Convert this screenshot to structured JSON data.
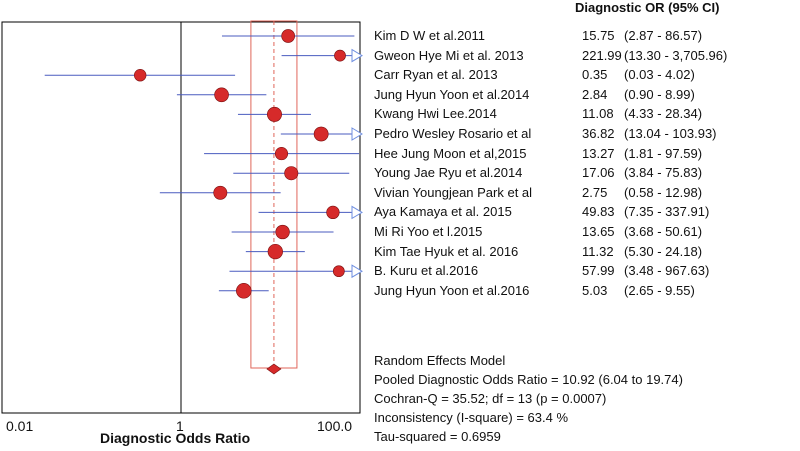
{
  "chart_data": {
    "type": "forest",
    "x_scale": "log",
    "xlim": [
      0.01,
      100
    ],
    "x_ticks": [
      "0.01",
      "1",
      "100.0"
    ],
    "xlabel": "Diagnostic Odds Ratio",
    "right_header": "Diagnostic OR (95% CI)",
    "studies": [
      {
        "name": "Kim D W et al.2011",
        "or": 15.75,
        "ci_low": 2.87,
        "ci_high": 86.57,
        "or_text": "15.75",
        "ci_text": "(2.87 - 86.57)"
      },
      {
        "name": "Gweon Hye Mi et al. 2013",
        "or": 221.99,
        "ci_low": 13.3,
        "ci_high": 3705.96,
        "or_text": "221.99",
        "ci_text": "(13.30 - 3,705.96)"
      },
      {
        "name": "Carr Ryan et al. 2013",
        "or": 0.35,
        "ci_low": 0.03,
        "ci_high": 4.02,
        "or_text": "0.35",
        "ci_text": "(0.03 - 4.02)"
      },
      {
        "name": "Jung Hyun Yoon et al.2014",
        "or": 2.84,
        "ci_low": 0.9,
        "ci_high": 8.99,
        "or_text": "2.84",
        "ci_text": "(0.90 - 8.99)"
      },
      {
        "name": "Kwang Hwi Lee.2014",
        "or": 11.08,
        "ci_low": 4.33,
        "ci_high": 28.34,
        "or_text": "11.08",
        "ci_text": "(4.33 - 28.34)"
      },
      {
        "name": "Pedro Wesley Rosario et al",
        "or": 36.82,
        "ci_low": 13.04,
        "ci_high": 103.93,
        "or_text": "36.82",
        "ci_text": "(13.04 - 103.93)"
      },
      {
        "name": "Hee Jung Moon et al,2015",
        "or": 13.27,
        "ci_low": 1.81,
        "ci_high": 97.59,
        "or_text": "13.27",
        "ci_text": "(1.81 - 97.59)"
      },
      {
        "name": "Young Jae Ryu et al.2014",
        "or": 17.06,
        "ci_low": 3.84,
        "ci_high": 75.83,
        "or_text": "17.06",
        "ci_text": "(3.84 - 75.83)"
      },
      {
        "name": "Vivian Youngjean Park et al",
        "or": 2.75,
        "ci_low": 0.58,
        "ci_high": 12.98,
        "or_text": "2.75",
        "ci_text": "(0.58 - 12.98)"
      },
      {
        "name": "Aya Kamaya et al. 2015",
        "or": 49.83,
        "ci_low": 7.35,
        "ci_high": 337.91,
        "or_text": "49.83",
        "ci_text": "(7.35 - 337.91)"
      },
      {
        "name": "Mi Ri Yoo et l.2015",
        "or": 13.65,
        "ci_low": 3.68,
        "ci_high": 50.61,
        "or_text": "13.65",
        "ci_text": "(3.68 - 50.61)"
      },
      {
        "name": "Kim Tae Hyuk et al. 2016",
        "or": 11.32,
        "ci_low": 5.3,
        "ci_high": 24.18,
        "or_text": "11.32",
        "ci_text": "(5.30 - 24.18)"
      },
      {
        "name": "B. Kuru et al.2016",
        "or": 57.99,
        "ci_low": 3.48,
        "ci_high": 967.63,
        "or_text": "57.99",
        "ci_text": "(3.48 - 967.63)"
      },
      {
        "name": "Jung Hyun Yoon et al.2016",
        "or": 5.03,
        "ci_low": 2.65,
        "ci_high": 9.55,
        "or_text": "5.03",
        "ci_text": "(2.65 - 9.55)"
      }
    ],
    "pooled": {
      "or": 10.92,
      "ci_low": 6.04,
      "ci_high": 19.74
    },
    "summary_lines": [
      "Random Effects Model",
      "Pooled Diagnostic Odds Ratio = 10.92 (6.04 to 19.74)",
      "Cochran-Q = 35.52; df = 13 (p = 0.0007)",
      "Inconsistency (I-square) = 63.4 %",
      "Tau-squared = 0.6959"
    ],
    "colors": {
      "point": "#d62a2a",
      "ci_line": "#4a5bbf",
      "arrow": "#6f8fe0",
      "pooled_box": "#e0665a",
      "axis": "#000000"
    }
  }
}
